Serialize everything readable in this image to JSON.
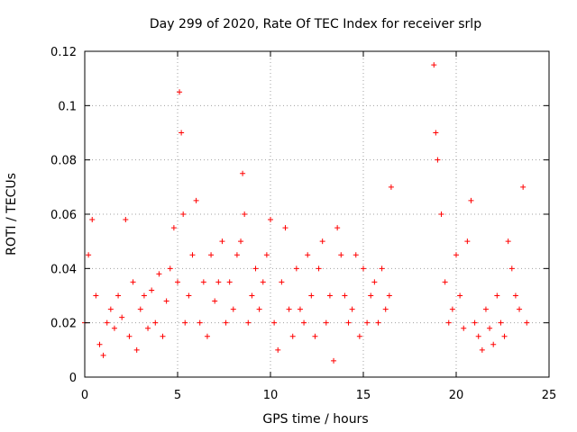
{
  "chart_data": {
    "type": "scatter",
    "title": "Day 299 of 2020, Rate Of TEC Index for receiver srlp",
    "xlabel": "GPS time / hours",
    "ylabel": "ROTI / TECUs",
    "xlim": [
      0,
      25
    ],
    "ylim": [
      0,
      0.12
    ],
    "x_ticks": [
      0,
      5,
      10,
      15,
      20,
      25
    ],
    "x_tick_labels": [
      "0",
      "5",
      "10",
      "15",
      "20",
      "25"
    ],
    "y_ticks": [
      0,
      0.02,
      0.04,
      0.06,
      0.08,
      0.1,
      0.12
    ],
    "y_tick_labels": [
      "0",
      "0.02",
      "0.04",
      "0.06",
      "0.08",
      "0.1",
      "0.12"
    ],
    "grid": true,
    "marker": "+",
    "series": [
      {
        "name": "ROTI",
        "color": "#ff0000",
        "x": [
          0.0,
          0.2,
          0.4,
          0.6,
          0.8,
          1.0,
          1.2,
          1.4,
          1.6,
          1.8,
          2.0,
          2.2,
          2.4,
          2.6,
          2.8,
          3.0,
          3.2,
          3.4,
          3.6,
          3.8,
          4.0,
          4.2,
          4.4,
          4.6,
          4.8,
          5.0,
          5.1,
          5.2,
          5.3,
          5.4,
          5.6,
          5.8,
          6.0,
          6.2,
          6.4,
          6.6,
          6.8,
          7.0,
          7.2,
          7.4,
          7.6,
          7.8,
          8.0,
          8.2,
          8.4,
          8.5,
          8.6,
          8.8,
          9.0,
          9.2,
          9.4,
          9.6,
          9.8,
          10.0,
          10.2,
          10.4,
          10.6,
          10.8,
          11.0,
          11.2,
          11.4,
          11.6,
          11.8,
          12.0,
          12.2,
          12.4,
          12.6,
          12.8,
          13.0,
          13.2,
          13.4,
          13.6,
          13.8,
          14.0,
          14.2,
          14.4,
          14.6,
          14.8,
          15.0,
          15.2,
          15.4,
          15.6,
          15.8,
          16.0,
          16.2,
          16.4,
          16.5,
          18.8,
          18.9,
          19.0,
          19.2,
          19.4,
          19.6,
          19.8,
          20.0,
          20.2,
          20.4,
          20.6,
          20.8,
          21.0,
          21.2,
          21.4,
          21.6,
          21.8,
          22.0,
          22.2,
          22.4,
          22.6,
          22.8,
          23.0,
          23.2,
          23.4,
          23.6,
          23.8
        ],
        "y": [
          0.02,
          0.045,
          0.058,
          0.03,
          0.012,
          0.008,
          0.02,
          0.025,
          0.018,
          0.03,
          0.022,
          0.058,
          0.015,
          0.035,
          0.01,
          0.025,
          0.03,
          0.018,
          0.032,
          0.02,
          0.038,
          0.015,
          0.028,
          0.04,
          0.055,
          0.035,
          0.105,
          0.09,
          0.06,
          0.02,
          0.03,
          0.045,
          0.065,
          0.02,
          0.035,
          0.015,
          0.045,
          0.028,
          0.035,
          0.05,
          0.02,
          0.035,
          0.025,
          0.045,
          0.05,
          0.075,
          0.06,
          0.02,
          0.03,
          0.04,
          0.025,
          0.035,
          0.045,
          0.058,
          0.02,
          0.01,
          0.035,
          0.055,
          0.025,
          0.015,
          0.04,
          0.025,
          0.02,
          0.045,
          0.03,
          0.015,
          0.04,
          0.05,
          0.02,
          0.03,
          0.006,
          0.055,
          0.045,
          0.03,
          0.02,
          0.025,
          0.045,
          0.015,
          0.04,
          0.02,
          0.03,
          0.035,
          0.02,
          0.04,
          0.025,
          0.03,
          0.07,
          0.115,
          0.09,
          0.08,
          0.06,
          0.035,
          0.02,
          0.025,
          0.045,
          0.03,
          0.018,
          0.05,
          0.065,
          0.02,
          0.015,
          0.01,
          0.025,
          0.018,
          0.012,
          0.03,
          0.02,
          0.015,
          0.05,
          0.04,
          0.03,
          0.025,
          0.07,
          0.02
        ]
      }
    ]
  }
}
